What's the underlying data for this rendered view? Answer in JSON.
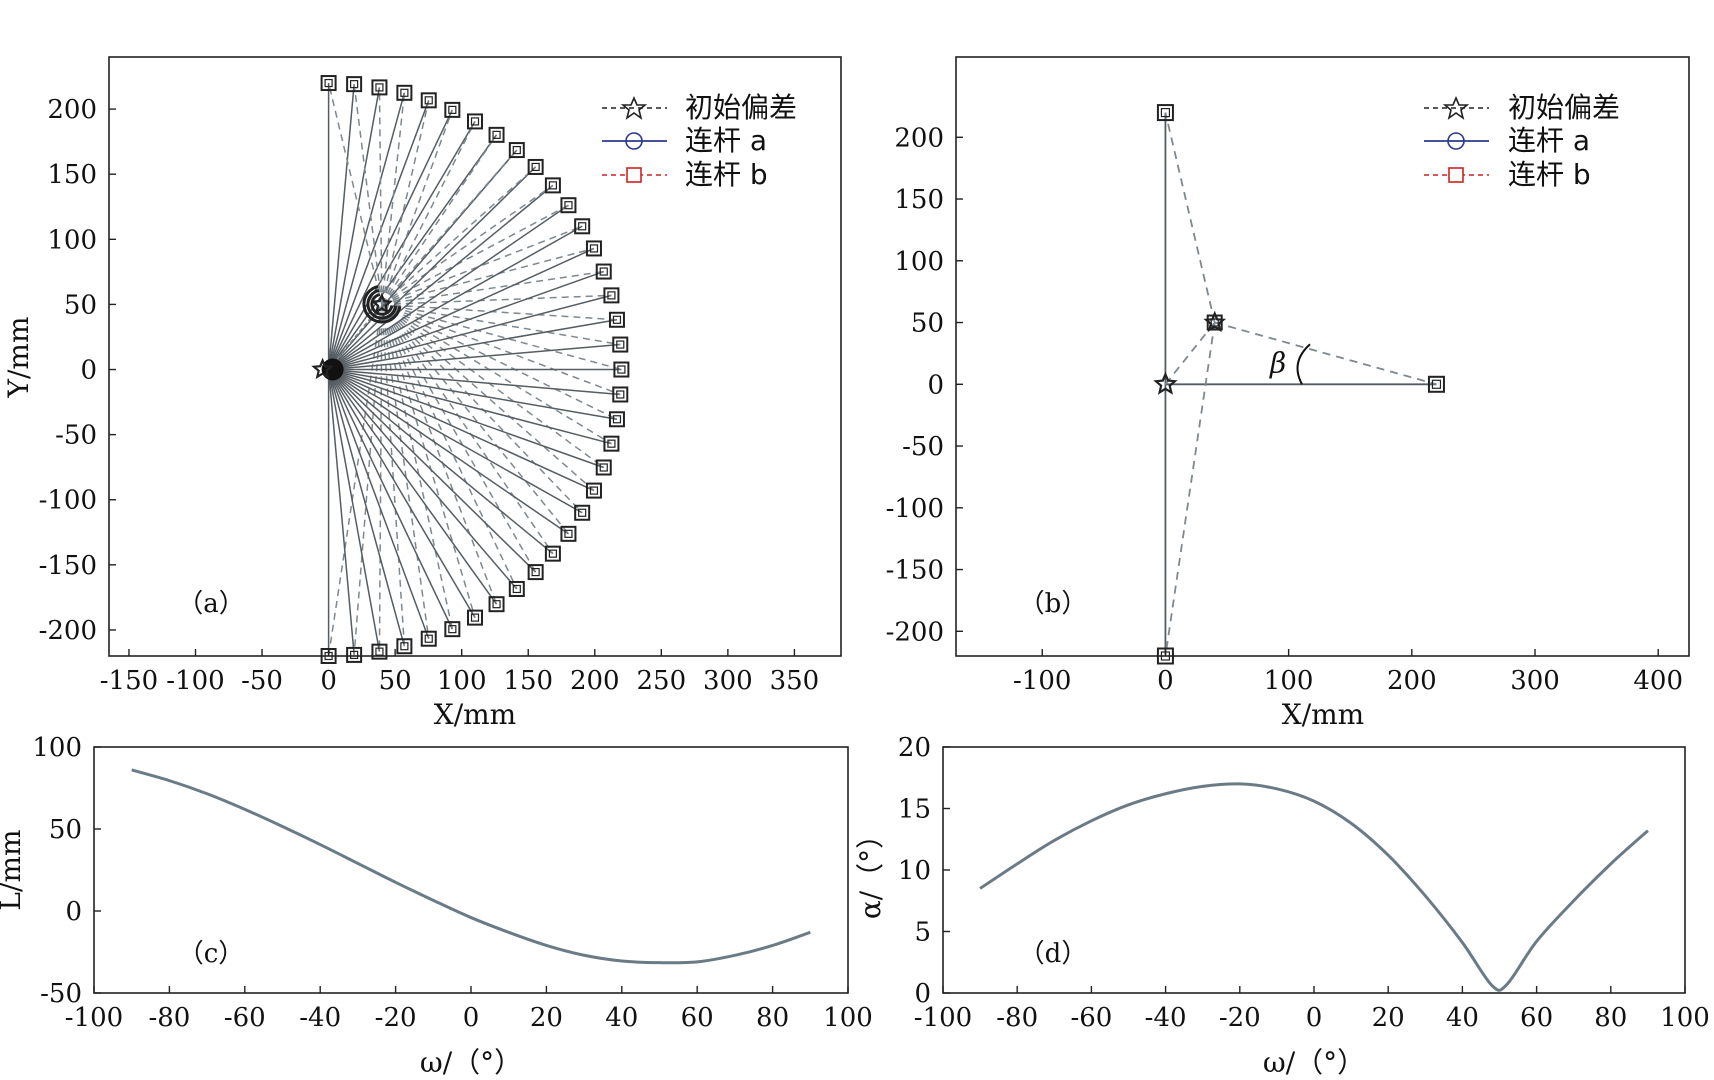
{
  "chart_data": [
    {
      "id": "a",
      "type": "line",
      "panel_label": "（a）",
      "xlabel": "X/mm",
      "ylabel": "Y/mm",
      "xlim": [
        -165,
        385
      ],
      "ylim": [
        -220,
        240
      ],
      "xticks": [
        "-150",
        "-100",
        "-50",
        "0",
        "50",
        "100",
        "150",
        "200",
        "250",
        "300",
        "350"
      ],
      "xtick_values": [
        -150,
        -100,
        -50,
        0,
        50,
        100,
        150,
        200,
        250,
        300,
        350
      ],
      "yticks": [
        "200",
        "150",
        "100",
        "50",
        "0",
        "-50",
        "-100",
        "-150",
        "-200"
      ],
      "ytick_values": [
        200,
        150,
        100,
        50,
        0,
        -50,
        -100,
        -150,
        -200
      ],
      "legend": [
        "初始偏差",
        "连杆 a",
        "连杆 b"
      ],
      "legend_position": "top-right",
      "mechanism": {
        "pivot": [
          0,
          0
        ],
        "initial_offset_point": [
          40,
          50
        ],
        "link_length": 220,
        "angle_range_deg": [
          -90,
          90
        ],
        "angle_step_deg": 5
      }
    },
    {
      "id": "b",
      "type": "line",
      "panel_label": "（b）",
      "xlabel": "X/mm",
      "ylabel": "",
      "xlim": [
        -170,
        425
      ],
      "ylim": [
        -220,
        265
      ],
      "xticks": [
        "-100",
        "0",
        "100",
        "200",
        "300",
        "400"
      ],
      "xtick_values": [
        -100,
        0,
        100,
        200,
        300,
        400
      ],
      "yticks": [
        "200",
        "150",
        "100",
        "50",
        "0",
        "-50",
        "-100",
        "-150",
        "-200"
      ],
      "ytick_values": [
        200,
        150,
        100,
        50,
        0,
        -50,
        -100,
        -150,
        -200
      ],
      "legend": [
        "初始偏差",
        "连杆 a",
        "连杆 b"
      ],
      "legend_position": "top-right",
      "annotation": "β",
      "mechanism": {
        "pivot": [
          0,
          0
        ],
        "initial_offset_point": [
          40,
          50
        ],
        "link_ends": [
          [
            0,
            220
          ],
          [
            220,
            0
          ],
          [
            0,
            -220
          ]
        ]
      }
    },
    {
      "id": "c",
      "type": "line",
      "panel_label": "（c）",
      "xlabel": "ω/（°）",
      "ylabel": "L/mm",
      "xlim": [
        -100,
        100
      ],
      "ylim": [
        -50,
        100
      ],
      "xticks": [
        "-100",
        "-80",
        "-60",
        "-40",
        "-20",
        "0",
        "20",
        "40",
        "60",
        "80",
        "100"
      ],
      "xtick_values": [
        -100,
        -80,
        -60,
        -40,
        -20,
        0,
        20,
        40,
        60,
        80,
        100
      ],
      "yticks": [
        "100",
        "50",
        "0",
        "-50"
      ],
      "ytick_values": [
        100,
        50,
        0,
        -50
      ],
      "x": [
        -90,
        -80,
        -70,
        -60,
        -50,
        -40,
        -30,
        -20,
        -10,
        0,
        10,
        20,
        30,
        40,
        50,
        60,
        70,
        80,
        90
      ],
      "values": [
        86,
        79.5,
        71.5,
        62,
        51.5,
        40.5,
        29,
        17.5,
        6.5,
        -4,
        -13,
        -21,
        -27,
        -30.5,
        -31.5,
        -31,
        -27,
        -21,
        -13
      ]
    },
    {
      "id": "d",
      "type": "line",
      "panel_label": "（d）",
      "xlabel": "ω/（°）",
      "ylabel": "α/（°）",
      "xlim": [
        -100,
        100
      ],
      "ylim": [
        0,
        20
      ],
      "xticks": [
        "-100",
        "-80",
        "-60",
        "-40",
        "-20",
        "0",
        "20",
        "40",
        "60",
        "80",
        "100"
      ],
      "xtick_values": [
        -100,
        -80,
        -60,
        -40,
        -20,
        0,
        20,
        40,
        60,
        80,
        100
      ],
      "yticks": [
        "20",
        "15",
        "10",
        "5",
        "0"
      ],
      "ytick_values": [
        20,
        15,
        10,
        5,
        0
      ],
      "x": [
        -90,
        -80,
        -70,
        -60,
        -50,
        -40,
        -30,
        -20,
        -10,
        0,
        10,
        20,
        30,
        40,
        48,
        52,
        60,
        70,
        80,
        90
      ],
      "values": [
        8.5,
        10.5,
        12.4,
        14,
        15.3,
        16.2,
        16.8,
        17,
        16.6,
        15.6,
        13.8,
        11.2,
        7.9,
        4.1,
        0.6,
        0.7,
        4.2,
        7.5,
        10.5,
        13.2
      ]
    }
  ],
  "colors": {
    "axis": "#222222",
    "curve": "#6b7b86",
    "link_a": "#555d63",
    "link_b": "#7d888f",
    "legend_link_a": "#2b3a8c",
    "legend_link_b": "#cc2222",
    "marker": "#222222"
  }
}
